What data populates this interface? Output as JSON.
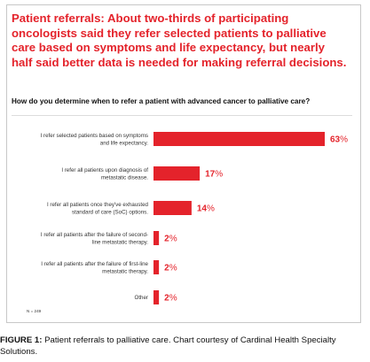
{
  "headline": "Patient referrals: About two-thirds of participating oncologists said they refer selected patients to palliative care based on symptoms and life expectancy, but nearly half said better data is needed for making referral decisions.",
  "question": "How do you determine when to refer a patient with advanced cancer to palliative care?",
  "note": "N = 249",
  "caption": {
    "label": "FIGURE 1:",
    "text": " Patient referrals to palliative care. Chart courtesy of Cardinal Health Specialty Solutions."
  },
  "colors": {
    "accent": "#e4232b"
  },
  "chart_data": {
    "type": "bar",
    "orientation": "horizontal",
    "title": "How do you determine when to refer a patient with advanced cancer to palliative care?",
    "categories": [
      [
        "I refer selected patients based on symptoms",
        "and life expectancy."
      ],
      [
        "I refer all patients upon diagnosis of",
        "metastatic disease."
      ],
      [
        "I refer all patients once they've exhausted",
        "standard of care (SoC) options."
      ],
      [
        "I refer all patients after the failure of second-",
        "line metastatic therapy."
      ],
      [
        "I refer all patients after the failure of first-line",
        "metastatic therapy."
      ],
      [
        "Other"
      ]
    ],
    "values": [
      63,
      17,
      14,
      2,
      2,
      2
    ],
    "value_suffix": "%",
    "xlim": [
      0,
      63
    ],
    "grid": false,
    "legend": "none"
  }
}
